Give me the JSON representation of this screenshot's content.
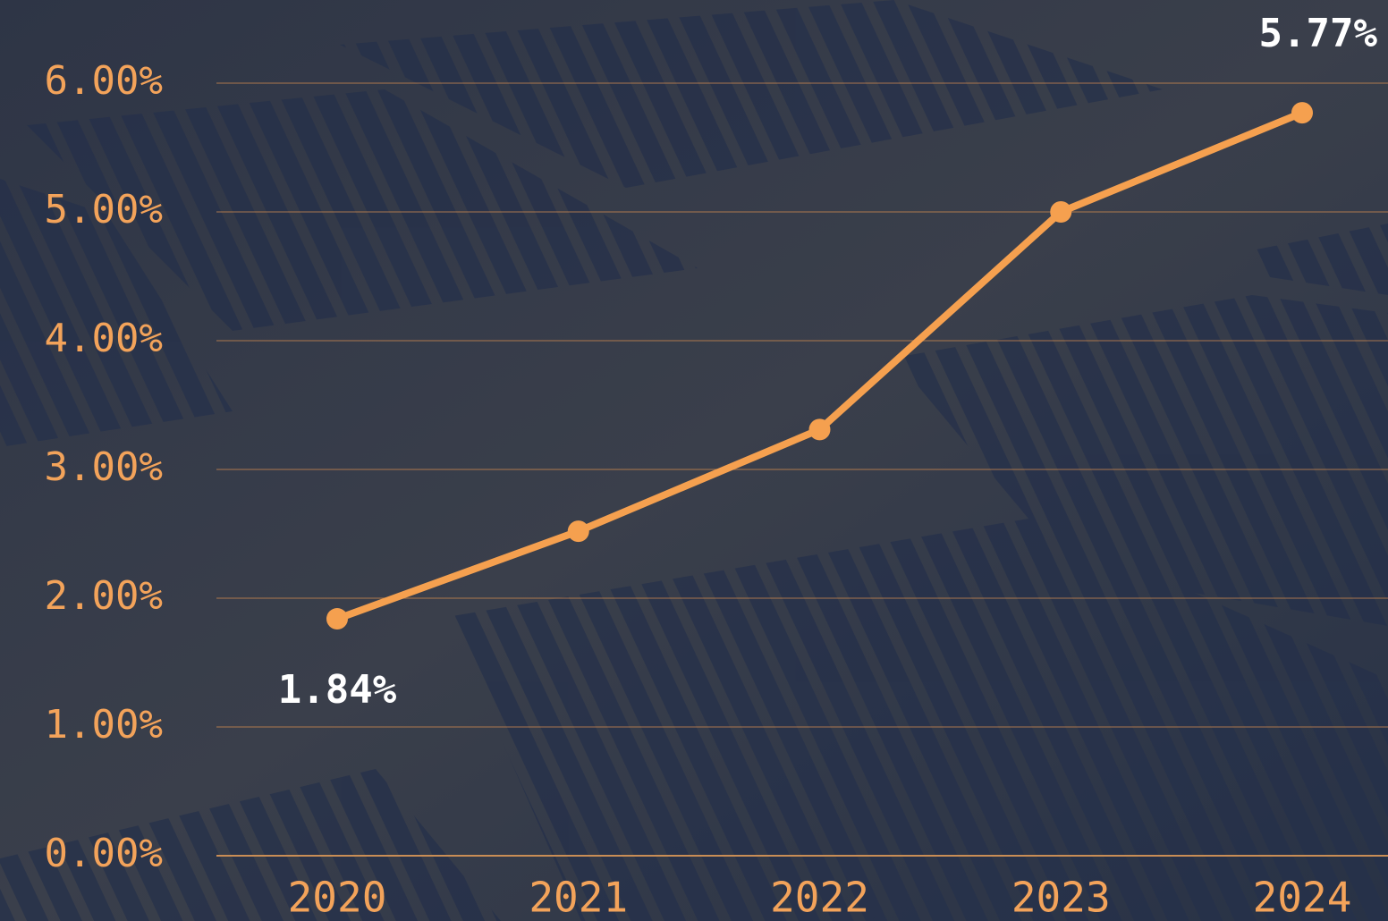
{
  "chart_data": {
    "type": "line",
    "categories": [
      "2020",
      "2021",
      "2022",
      "2023",
      "2024"
    ],
    "series": [
      {
        "color": "#f5a04f",
        "values": [
          1.84,
          2.52,
          3.31,
          5.0,
          5.77
        ],
        "value_labels": [
          "1.84%",
          null,
          null,
          null,
          "5.77%"
        ]
      }
    ],
    "ylim": [
      0,
      6
    ],
    "yticks": [
      {
        "value": 0,
        "label": "0.00%"
      },
      {
        "value": 1,
        "label": "1.00%"
      },
      {
        "value": 2,
        "label": "2.00%"
      },
      {
        "value": 3,
        "label": "3.00%"
      },
      {
        "value": 4,
        "label": "4.00%"
      },
      {
        "value": 5,
        "label": "5.00%"
      },
      {
        "value": 6,
        "label": "6.00%"
      }
    ],
    "grid": true
  }
}
